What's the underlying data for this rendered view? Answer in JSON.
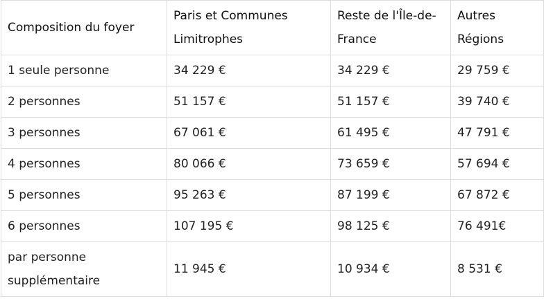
{
  "table": {
    "headers": [
      "Composition du foyer",
      "Paris et Communes Limitrophes",
      "Reste de l'Île-de-France",
      "Autres Régions"
    ],
    "rows": [
      [
        "1 seule personne",
        "34 229 €",
        "34 229 €",
        "29 759 €"
      ],
      [
        "2 personnes",
        "51 157 €",
        "51 157 €",
        "39 740 €"
      ],
      [
        "3 personnes",
        "67 061 €",
        "61 495 €",
        "47 791 €"
      ],
      [
        "4 personnes",
        "80 066 €",
        "73 659 €",
        "57 694 €"
      ],
      [
        "5 personnes",
        "95 263 €",
        "87 199 €",
        "67 872 €"
      ],
      [
        "6 personnes",
        "107 195 €",
        "98 125 €",
        "76 491€"
      ],
      [
        "par personne supplémentaire",
        "11 945 €",
        "10 934 €",
        "8 531 €"
      ]
    ]
  }
}
